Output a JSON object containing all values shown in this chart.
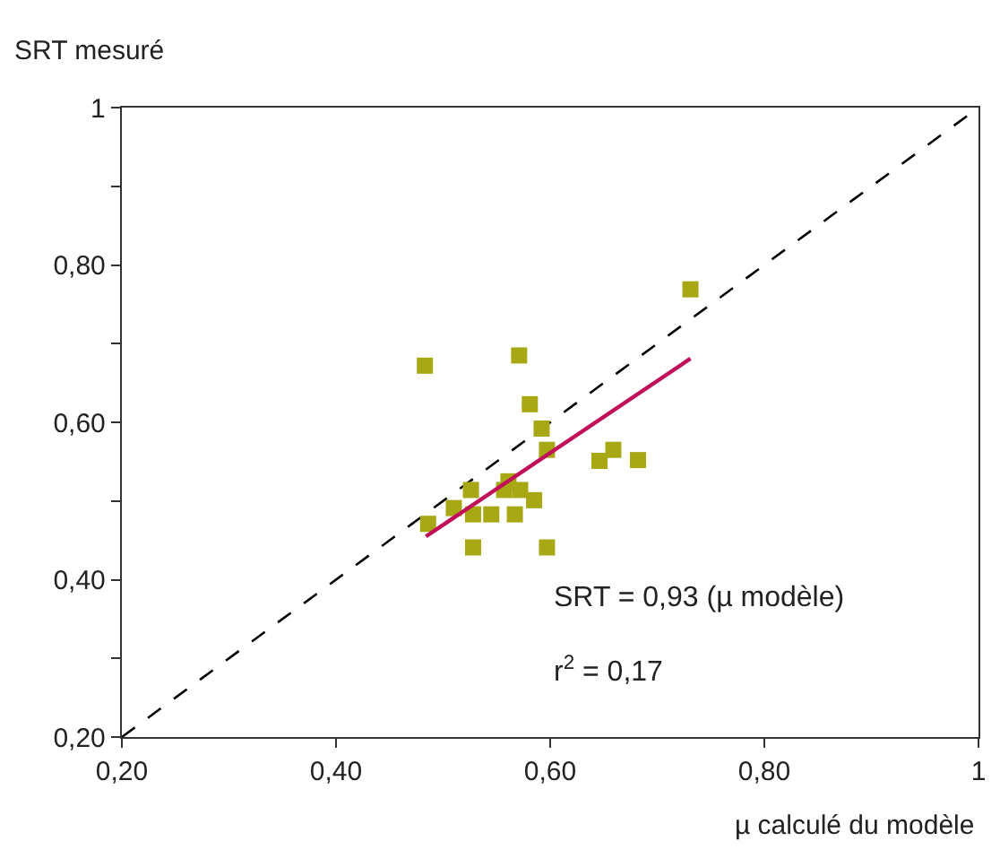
{
  "chart_data": {
    "type": "scatter",
    "xlabel": "µ calculé du modèle",
    "ylabel": "SRT mesuré",
    "xlim": [
      0.2,
      1
    ],
    "ylim": [
      0.2,
      1
    ],
    "xticks": [
      {
        "value": 0.2,
        "label": "0,20"
      },
      {
        "value": 0.4,
        "label": "0,40"
      },
      {
        "value": 0.6,
        "label": "0,60"
      },
      {
        "value": 0.8,
        "label": "0,80"
      },
      1
    ],
    "yticks": [
      {
        "value": 0.2,
        "label": "0,20"
      },
      {
        "value": 0.3,
        "label": null
      },
      {
        "value": 0.4,
        "label": "0,40"
      },
      {
        "value": 0.5,
        "label": null
      },
      {
        "value": 0.6,
        "label": "0,60"
      },
      {
        "value": 0.7,
        "label": null
      },
      {
        "value": 0.8,
        "label": "0,80"
      },
      {
        "value": 0.9,
        "label": null
      },
      1
    ],
    "legend": false,
    "series": [
      {
        "type": "line",
        "color": "#000000",
        "line_style": "dashed",
        "marker": "none",
        "x": [
          0.2,
          1
        ],
        "values": [
          0.2,
          1
        ]
      },
      {
        "color": "#a8a814",
        "marker": "square",
        "x": [
          0.731,
          0.483,
          0.571,
          0.581,
          0.592,
          0.597,
          0.646,
          0.659,
          0.682,
          0.526,
          0.561,
          0.572,
          0.557,
          0.585,
          0.51,
          0.486,
          0.528,
          0.545,
          0.567,
          0.528,
          0.597
        ],
        "values": [
          0.769,
          0.672,
          0.685,
          0.623,
          0.592,
          0.565,
          0.551,
          0.565,
          0.552,
          0.514,
          0.525,
          0.514,
          0.514,
          0.501,
          0.491,
          0.471,
          0.483,
          0.483,
          0.483,
          0.441,
          0.441
        ]
      },
      {
        "type": "line",
        "color": "#c0105a",
        "line_style": "solid",
        "marker": "none",
        "x": [
          0.484,
          0.731
        ],
        "values": [
          0.455,
          0.681
        ]
      }
    ],
    "annotations": [
      "SRT = 0,93 (µ modèle)",
      "r$^{2}$ = 0,17"
    ]
  }
}
